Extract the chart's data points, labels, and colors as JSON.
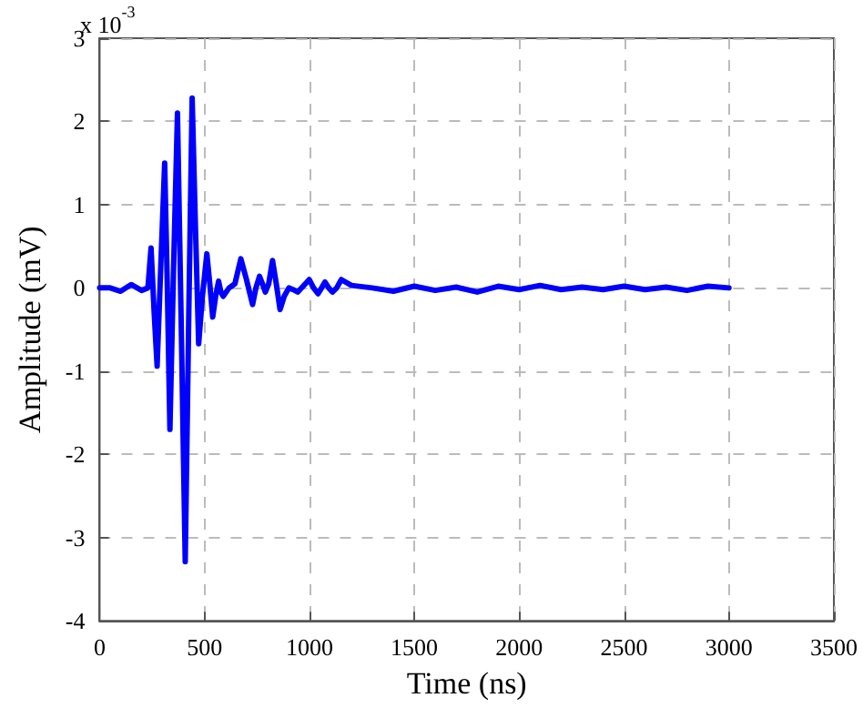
{
  "chart_data": {
    "type": "line",
    "xlabel": "Time (ns)",
    "ylabel": "Amplitude (mV)",
    "annotations": [
      "x 10$^{-3}$"
    ],
    "xlim": [
      0,
      3500
    ],
    "xticks": [
      0,
      500,
      1000,
      1500,
      2000,
      2500,
      3000,
      3500
    ],
    "ylim": [
      -4,
      3
    ],
    "yticks": [
      -4,
      -3,
      -2,
      -1,
      0,
      1,
      2,
      3
    ],
    "grid": true,
    "line_style": "solid",
    "marker": "none",
    "series": [
      {
        "color": "#0000ff",
        "x": [
          0,
          50,
          100,
          150,
          200,
          230,
          245,
          260,
          274,
          292,
          310,
          322,
          335,
          352,
          371,
          390,
          408,
          425,
          441,
          456,
          472,
          490,
          511,
          525,
          539,
          553,
          567,
          578,
          589,
          617,
          645,
          673,
          700,
          729,
          745,
          762,
          776,
          790,
          806,
          824,
          842,
          860,
          880,
          902,
          922,
          944,
          970,
          999,
          1020,
          1041,
          1058,
          1074,
          1092,
          1110,
          1130,
          1152,
          1200,
          1300,
          1400,
          1500,
          1600,
          1700,
          1800,
          1900,
          2000,
          2100,
          2200,
          2300,
          2400,
          2500,
          2600,
          2700,
          2800,
          2900,
          3000
        ],
        "values": [
          0,
          0,
          -0.04,
          0.04,
          -0.03,
          0,
          0.48,
          -0.3,
          -0.94,
          0.3,
          1.5,
          0.1,
          -1.7,
          0.2,
          2.1,
          -0.6,
          -3.29,
          -0.3,
          2.28,
          0.8,
          -0.67,
          -0.1,
          0.41,
          0.05,
          -0.35,
          -0.1,
          0.08,
          -0.05,
          -0.1,
          0,
          0.05,
          0.35,
          0.1,
          -0.2,
          0,
          0.14,
          0.05,
          -0.05,
          0.05,
          0.33,
          0.05,
          -0.26,
          -0.1,
          0,
          -0.02,
          -0.05,
          0.02,
          0.1,
          0,
          -0.07,
          0,
          0.07,
          0,
          -0.05,
          0,
          0.1,
          0.03,
          0,
          -0.04,
          0.02,
          -0.03,
          0.01,
          -0.05,
          0.02,
          -0.02,
          0.03,
          -0.02,
          0.01,
          -0.02,
          0.02,
          -0.02,
          0.01,
          -0.03,
          0.02,
          0
        ]
      }
    ]
  }
}
